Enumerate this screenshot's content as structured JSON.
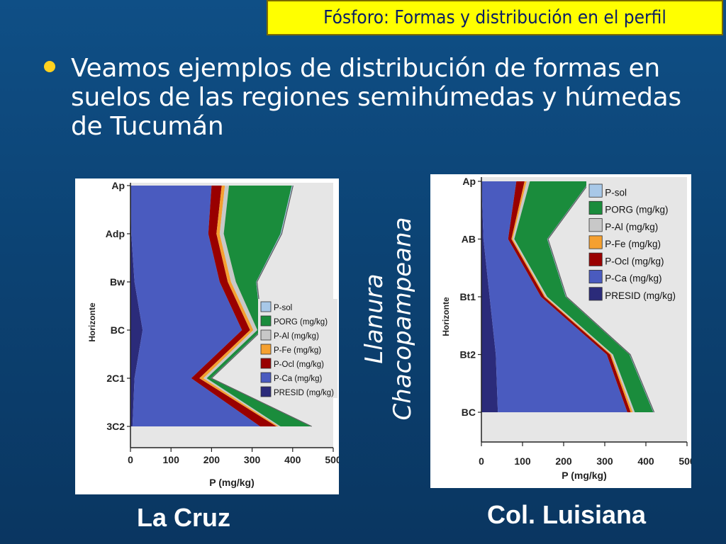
{
  "slide": {
    "title": "Fósforo: Formas y distribución en el perfil",
    "bullet": "Veamos ejemplos de distribución de formas en suelos de las regiones semihúmedas y húmedas de Tucumán",
    "region_label_line1": "Llanura",
    "region_label_line2": "Chacopampeana",
    "caption_left": "La Cruz",
    "caption_right": "Col. Luisiana"
  },
  "colors": {
    "PRESID (mg/kg)": "#2b2b7a",
    "P-Ca (mg/kg)": "#4a5bbf",
    "P-Ocl (mg/kg)": "#990000",
    "P-Fe (mg/kg)": "#f5a030",
    "P-Al (mg/kg)": "#c8c8c8",
    "PORG (mg/kg)": "#1a8c3c",
    "P-sol": "#a8c8e8"
  },
  "chart_data": [
    {
      "type": "area",
      "title": "",
      "xlabel": "P (mg/kg)",
      "ylabel": "Horizonte",
      "xlim": [
        0,
        500
      ],
      "x_ticks": [
        "0",
        "100",
        "200",
        "300",
        "400",
        "500"
      ],
      "categories": [
        "Ap",
        "Adp",
        "Bw",
        "BC",
        "2C1",
        "3C2"
      ],
      "legend": [
        "P-sol",
        "PORG (mg/kg)",
        "P-Al (mg/kg)",
        "P-Fe (mg/kg)",
        "P-Ocl (mg/kg)",
        "P-Ca (mg/kg)",
        "PRESID (mg/kg)"
      ],
      "series": [
        {
          "name": "PRESID (mg/kg)",
          "values": [
            0,
            2,
            10,
            30,
            10,
            5
          ]
        },
        {
          "name": "P-Ca (mg/kg)",
          "values": [
            200,
            190,
            210,
            245,
            140,
            315
          ]
        },
        {
          "name": "P-Ocl (mg/kg)",
          "values": [
            25,
            20,
            20,
            20,
            20,
            40
          ]
        },
        {
          "name": "P-Fe (mg/kg)",
          "values": [
            8,
            8,
            8,
            8,
            10,
            5
          ]
        },
        {
          "name": "P-Al (mg/kg)",
          "values": [
            10,
            10,
            12,
            10,
            8,
            5
          ]
        },
        {
          "name": "PORG (mg/kg)",
          "values": [
            155,
            140,
            50,
            10,
            10,
            75
          ]
        },
        {
          "name": "P-sol",
          "values": [
            3,
            3,
            2,
            2,
            2,
            2
          ]
        }
      ]
    },
    {
      "type": "area",
      "title": "",
      "xlabel": "P (mg/kg)",
      "ylabel": "Horizonte",
      "xlim": [
        0,
        500
      ],
      "x_ticks": [
        "0",
        "100",
        "200",
        "300",
        "400",
        "500"
      ],
      "categories": [
        "Ap",
        "AB",
        "Bt1",
        "Bt2",
        "BC"
      ],
      "legend": [
        "P-sol",
        "PORG (mg/kg)",
        "P-Al (mg/kg)",
        "P-Fe (mg/kg)",
        "P-Ocl (mg/kg)",
        "P-Ca (mg/kg)",
        "PRESID (mg/kg)"
      ],
      "series": [
        {
          "name": "PRESID (mg/kg)",
          "values": [
            0,
            5,
            20,
            35,
            40
          ]
        },
        {
          "name": "P-Ca (mg/kg)",
          "values": [
            85,
            60,
            125,
            270,
            315
          ]
        },
        {
          "name": "P-Ocl (mg/kg)",
          "values": [
            20,
            8,
            8,
            8,
            8
          ]
        },
        {
          "name": "P-Fe (mg/kg)",
          "values": [
            5,
            3,
            3,
            3,
            5
          ]
        },
        {
          "name": "P-Al (mg/kg)",
          "values": [
            8,
            4,
            4,
            4,
            5
          ]
        },
        {
          "name": "PORG (mg/kg)",
          "values": [
            145,
            80,
            45,
            40,
            45
          ]
        },
        {
          "name": "P-sol",
          "values": [
            2,
            2,
            2,
            2,
            2
          ]
        }
      ]
    }
  ]
}
